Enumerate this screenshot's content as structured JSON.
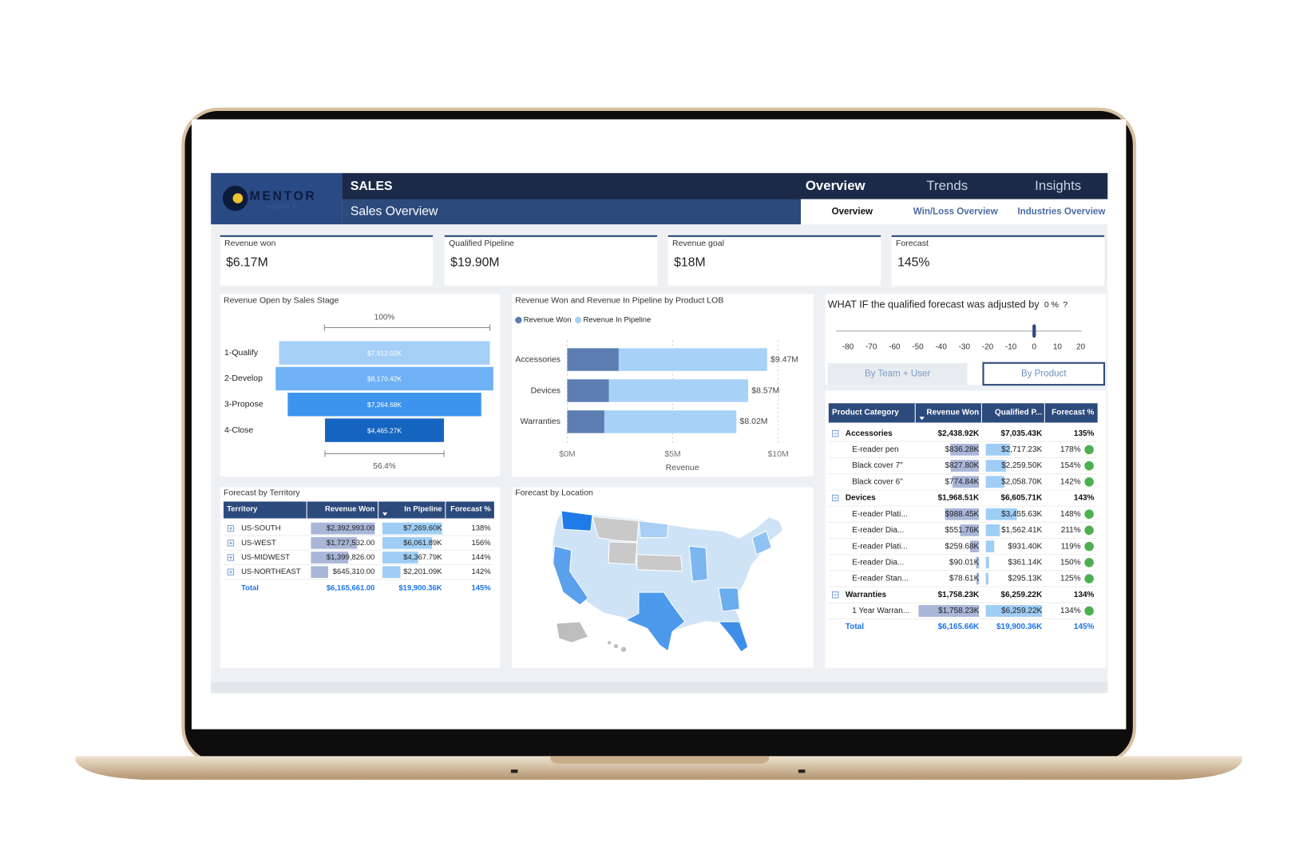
{
  "logo": {
    "name": "MENTOR",
    "tagline": "POWER BI"
  },
  "header": {
    "section": "SALES",
    "page": "Sales Overview",
    "nav": [
      "Overview",
      "Trends",
      "Insights"
    ],
    "tabs": [
      "Overview",
      "Win/Loss Overview",
      "Industries Overview"
    ]
  },
  "kpis": [
    {
      "label": "Revenue won",
      "value": "$6.17M"
    },
    {
      "label": "Qualified Pipeline",
      "value": "$19.90M"
    },
    {
      "label": "Revenue goal",
      "value": "$18M"
    },
    {
      "label": "Forecast",
      "value": "145%"
    }
  ],
  "funnel": {
    "title": "Revenue Open by Sales Stage",
    "top_label": "100%",
    "bottom_label": "56.4%",
    "categories": [
      "1-Qualify",
      "2-Develop",
      "3-Propose",
      "4-Close"
    ],
    "values": [
      7912.02,
      8170.42,
      7264.68,
      4465.27
    ],
    "value_labels": [
      "$7,912.02K",
      "$8,170.42K",
      "$7,264.68K",
      "$4,465.27K"
    ],
    "colors": [
      "#a6cff7",
      "#6fb1f5",
      "#3d94ef",
      "#1565c0"
    ]
  },
  "lob_chart": {
    "type": "bar",
    "title": "Revenue Won and Revenue In Pipeline by Product LOB",
    "categories": [
      "Accessories",
      "Devices",
      "Warranties"
    ],
    "series": [
      {
        "name": "Revenue Won",
        "color": "#5b7db1",
        "values": [
          2.439,
          1.969,
          1.758
        ]
      },
      {
        "name": "Revenue In Pipeline",
        "color": "#a8d1f7",
        "values": [
          7.035,
          6.606,
          6.259
        ]
      }
    ],
    "total_labels": [
      "$9.47M",
      "$8.57M",
      "$8.02M"
    ],
    "x_label": "Revenue",
    "xlim": [
      0,
      10
    ],
    "xticks": [
      {
        "value": 0,
        "label": "$0M"
      },
      {
        "value": 5,
        "label": "$5M"
      },
      {
        "value": 10,
        "label": "$10M"
      }
    ]
  },
  "whatif": {
    "question": "WHAT IF the qualified forecast was adjusted by",
    "value_label": "0 %",
    "question_end": "?",
    "value": 0,
    "ticks": [
      -80,
      -70,
      -60,
      -50,
      -40,
      -30,
      -20,
      -10,
      0,
      10,
      20
    ],
    "buttons": [
      "By Team + User",
      "By Product"
    ]
  },
  "territory_table": {
    "title": "Forecast by Territory",
    "columns": [
      "Territory",
      "Revenue Won",
      "In Pipeline",
      "Forecast %"
    ],
    "rows": [
      [
        "US-SOUTH",
        "$2,392,993.00",
        "$7,269.60K",
        "138%"
      ],
      [
        "US-WEST",
        "$1,727,532.00",
        "$6,061.89K",
        "156%"
      ],
      [
        "US-MIDWEST",
        "$1,399,826.00",
        "$4,367.79K",
        "144%"
      ],
      [
        "US-NORTHEAST",
        "$645,310.00",
        "$2,201.09K",
        "142%"
      ]
    ],
    "total": [
      "Total",
      "$6,165,661.00",
      "$19,900.36K",
      "145%"
    ]
  },
  "map": {
    "title": "Forecast by Location"
  },
  "product_table": {
    "columns": [
      "Product Category",
      "Revenue Won",
      "Qualified P...",
      "Forecast %"
    ],
    "groups": [
      {
        "row": [
          "Accessories",
          "$2,438.92K",
          "$7,035.43K",
          "135%"
        ],
        "items": [
          [
            "E-reader pen",
            "$836.28K",
            "$2,717.23K",
            "178%"
          ],
          [
            "Black cover 7\"",
            "$827.80K",
            "$2,259.50K",
            "154%"
          ],
          [
            "Black cover 6\"",
            "$774.84K",
            "$2,058.70K",
            "142%"
          ]
        ]
      },
      {
        "row": [
          "Devices",
          "$1,968.51K",
          "$6,605.71K",
          "143%"
        ],
        "items": [
          [
            "E-reader Plati...",
            "$988.45K",
            "$3,455.63K",
            "148%"
          ],
          [
            "E-reader Dia...",
            "$551.76K",
            "$1,562.41K",
            "211%"
          ],
          [
            "E-reader Plati...",
            "$259.68K",
            "$931.40K",
            "119%"
          ],
          [
            "E-reader Dia...",
            "$90.01K",
            "$361.14K",
            "150%"
          ],
          [
            "E-reader Stan...",
            "$78.61K",
            "$295.13K",
            "125%"
          ]
        ]
      },
      {
        "row": [
          "Warranties",
          "$1,758.23K",
          "$6,259.22K",
          "134%"
        ],
        "items": [
          [
            "1 Year Warran...",
            "$1,758.23K",
            "$6,259.22K",
            "134%"
          ]
        ]
      }
    ],
    "total": [
      "Total",
      "$6,165.66K",
      "$19,900.36K",
      "145%"
    ]
  }
}
